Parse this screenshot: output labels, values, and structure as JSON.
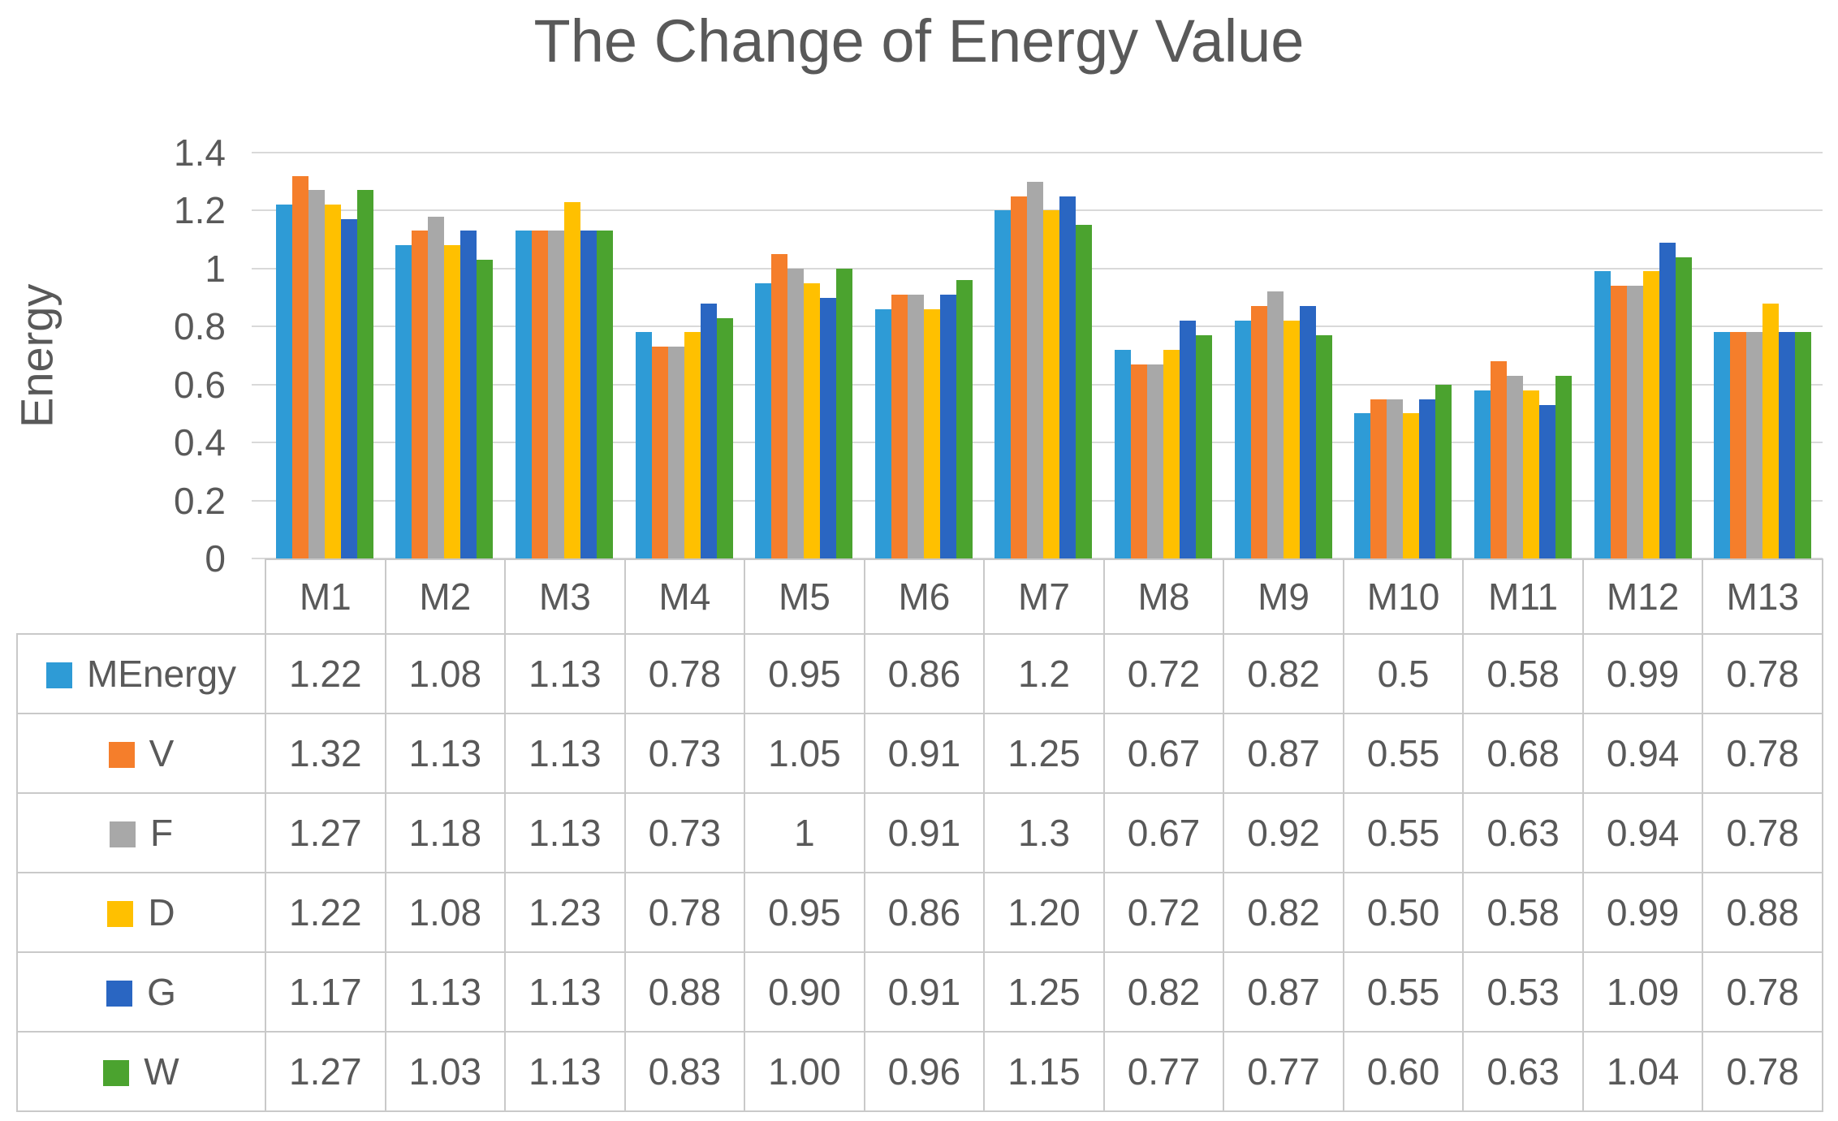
{
  "chart_data": {
    "type": "bar",
    "title": "The Change of Energy Value",
    "xlabel": "",
    "ylabel": "Energy",
    "ylim": [
      0,
      1.4
    ],
    "y_tick_labels_top_to_bottom": [
      "1.4",
      "1.2",
      "1",
      "0.8",
      "0.6",
      "0.4",
      "0.2",
      "0"
    ],
    "grid": true,
    "legend_position": "data-table-left-column",
    "categories": [
      "M1",
      "M2",
      "M3",
      "M4",
      "M5",
      "M6",
      "M7",
      "M8",
      "M9",
      "M10",
      "M11",
      "M12",
      "M13"
    ],
    "series": [
      {
        "name": "MEnergy",
        "color": "#2e9bd6",
        "values": [
          1.22,
          1.08,
          1.13,
          0.78,
          0.95,
          0.86,
          1.2,
          0.72,
          0.82,
          0.5,
          0.58,
          0.99,
          0.78
        ],
        "display": [
          "1.22",
          "1.08",
          "1.13",
          "0.78",
          "0.95",
          "0.86",
          "1.2",
          "0.72",
          "0.82",
          "0.5",
          "0.58",
          "0.99",
          "0.78"
        ]
      },
      {
        "name": "V",
        "color": "#f57e2b",
        "values": [
          1.32,
          1.13,
          1.13,
          0.73,
          1.05,
          0.91,
          1.25,
          0.67,
          0.87,
          0.55,
          0.68,
          0.94,
          0.78
        ],
        "display": [
          "1.32",
          "1.13",
          "1.13",
          "0.73",
          "1.05",
          "0.91",
          "1.25",
          "0.67",
          "0.87",
          "0.55",
          "0.68",
          "0.94",
          "0.78"
        ]
      },
      {
        "name": "F",
        "color": "#a8a8a8",
        "values": [
          1.27,
          1.18,
          1.13,
          0.73,
          1.0,
          0.91,
          1.3,
          0.67,
          0.92,
          0.55,
          0.63,
          0.94,
          0.78
        ],
        "display": [
          "1.27",
          "1.18",
          "1.13",
          "0.73",
          "1",
          "0.91",
          "1.3",
          "0.67",
          "0.92",
          "0.55",
          "0.63",
          "0.94",
          "0.78"
        ]
      },
      {
        "name": "D",
        "color": "#ffc000",
        "values": [
          1.22,
          1.08,
          1.23,
          0.78,
          0.95,
          0.86,
          1.2,
          0.72,
          0.82,
          0.5,
          0.58,
          0.99,
          0.88
        ],
        "display": [
          "1.22",
          "1.08",
          "1.23",
          "0.78",
          "0.95",
          "0.86",
          "1.20",
          "0.72",
          "0.82",
          "0.50",
          "0.58",
          "0.99",
          "0.88"
        ]
      },
      {
        "name": "G",
        "color": "#2a66c2",
        "values": [
          1.17,
          1.13,
          1.13,
          0.88,
          0.9,
          0.91,
          1.25,
          0.82,
          0.87,
          0.55,
          0.53,
          1.09,
          0.78
        ],
        "display": [
          "1.17",
          "1.13",
          "1.13",
          "0.88",
          "0.90",
          "0.91",
          "1.25",
          "0.82",
          "0.87",
          "0.55",
          "0.53",
          "1.09",
          "0.78"
        ]
      },
      {
        "name": "W",
        "color": "#4ba32f",
        "values": [
          1.27,
          1.03,
          1.13,
          0.83,
          1.0,
          0.96,
          1.15,
          0.77,
          0.77,
          0.6,
          0.63,
          1.04,
          0.78
        ],
        "display": [
          "1.27",
          "1.03",
          "1.13",
          "0.83",
          "1.00",
          "0.96",
          "1.15",
          "0.77",
          "0.77",
          "0.60",
          "0.63",
          "1.04",
          "0.78"
        ]
      }
    ]
  },
  "colors": {
    "text": "#595959",
    "gridline": "#d9d9d9",
    "table_border": "#c9c9c9",
    "background": "#ffffff"
  }
}
